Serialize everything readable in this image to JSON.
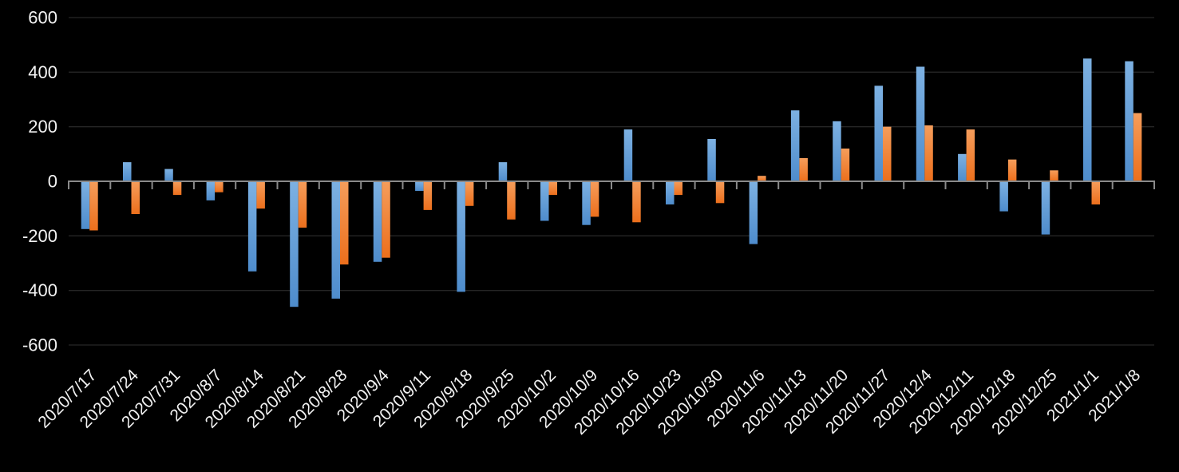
{
  "chart_data": {
    "type": "bar",
    "title": "",
    "legend": "none",
    "grid": true,
    "background": "#000000",
    "gridline_color": "#262626",
    "axis_color": "#8a8a8a",
    "label_color": "#f2f2f2",
    "ylim": [
      -600,
      600
    ],
    "ytick_step": 200,
    "ytick_labels": [
      "600",
      "400",
      "200",
      "0",
      "-200",
      "-400",
      "-600"
    ],
    "categories": [
      "2020/7/17",
      "2020/7/24",
      "2020/7/31",
      "2020/8/7",
      "2020/8/14",
      "2020/8/21",
      "2020/8/28",
      "2020/9/4",
      "2020/9/11",
      "2020/9/18",
      "2020/9/25",
      "2020/10/2",
      "2020/10/9",
      "2020/10/16",
      "2020/10/23",
      "2020/10/30",
      "2020/11/6",
      "2020/11/13",
      "2020/11/20",
      "2020/11/27",
      "2020/12/4",
      "2020/12/11",
      "2020/12/18",
      "2020/12/25",
      "2021/1/1",
      "2021/1/8"
    ],
    "series": [
      {
        "name": "blue",
        "color": "#4e8ccc",
        "color_light": "#7db1e2",
        "values": [
          -175,
          70,
          45,
          -70,
          -330,
          -460,
          -430,
          -295,
          -35,
          -405,
          70,
          -145,
          -160,
          190,
          -85,
          155,
          -230,
          260,
          220,
          350,
          420,
          100,
          -110,
          -195,
          450,
          440
        ]
      },
      {
        "name": "orange",
        "color": "#ec6f1c",
        "color_light": "#f59d5b",
        "values": [
          -180,
          -120,
          -50,
          -40,
          -100,
          -170,
          -305,
          -280,
          -105,
          -90,
          -140,
          -50,
          -130,
          -150,
          -50,
          -80,
          20,
          85,
          120,
          200,
          205,
          190,
          80,
          40,
          -85,
          250
        ]
      }
    ]
  }
}
